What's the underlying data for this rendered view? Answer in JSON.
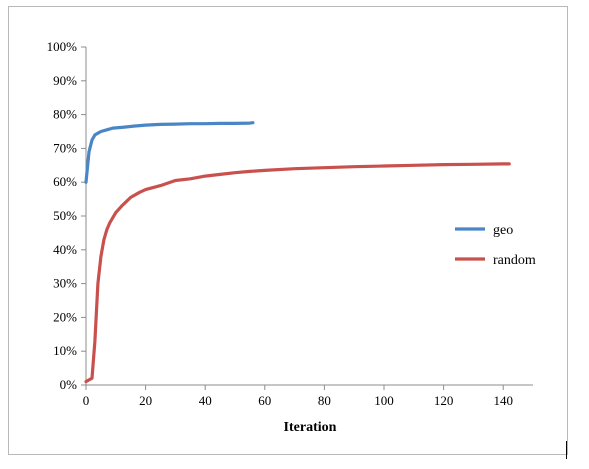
{
  "chart_data": {
    "type": "line",
    "xlabel": "Iteration",
    "ylabel": "",
    "xlim": [
      0,
      150
    ],
    "ylim": [
      0,
      100
    ],
    "x_ticks": [
      "0",
      "20",
      "40",
      "60",
      "80",
      "100",
      "120",
      "140"
    ],
    "y_ticks": [
      "0%",
      "10%",
      "20%",
      "30%",
      "40%",
      "50%",
      "60%",
      "70%",
      "80%",
      "90%",
      "100%"
    ],
    "grid": false,
    "legend_position": "right",
    "series": [
      {
        "name": "geo",
        "color": "#4a86c5",
        "x": [
          0,
          1,
          2,
          3,
          4,
          5,
          7,
          9,
          12,
          16,
          20,
          25,
          30,
          35,
          40,
          45,
          50,
          55,
          56
        ],
        "y": [
          60,
          69,
          72.5,
          74,
          74.5,
          75,
          75.5,
          76,
          76.2,
          76.6,
          76.9,
          77.1,
          77.2,
          77.3,
          77.3,
          77.4,
          77.4,
          77.5,
          77.6
        ]
      },
      {
        "name": "random",
        "color": "#c9514d",
        "x": [
          0,
          1,
          2,
          3,
          4,
          5,
          6,
          7,
          8,
          10,
          12,
          15,
          18,
          20,
          25,
          30,
          35,
          40,
          45,
          50,
          55,
          60,
          70,
          80,
          90,
          100,
          110,
          120,
          130,
          140,
          142
        ],
        "y": [
          1,
          1.5,
          2,
          13,
          30,
          38,
          43,
          46,
          48,
          51,
          53,
          55.5,
          57,
          57.8,
          59,
          60.5,
          61,
          61.8,
          62.3,
          62.8,
          63.2,
          63.5,
          64,
          64.3,
          64.6,
          64.8,
          65,
          65.2,
          65.3,
          65.4,
          65.4
        ]
      }
    ]
  }
}
